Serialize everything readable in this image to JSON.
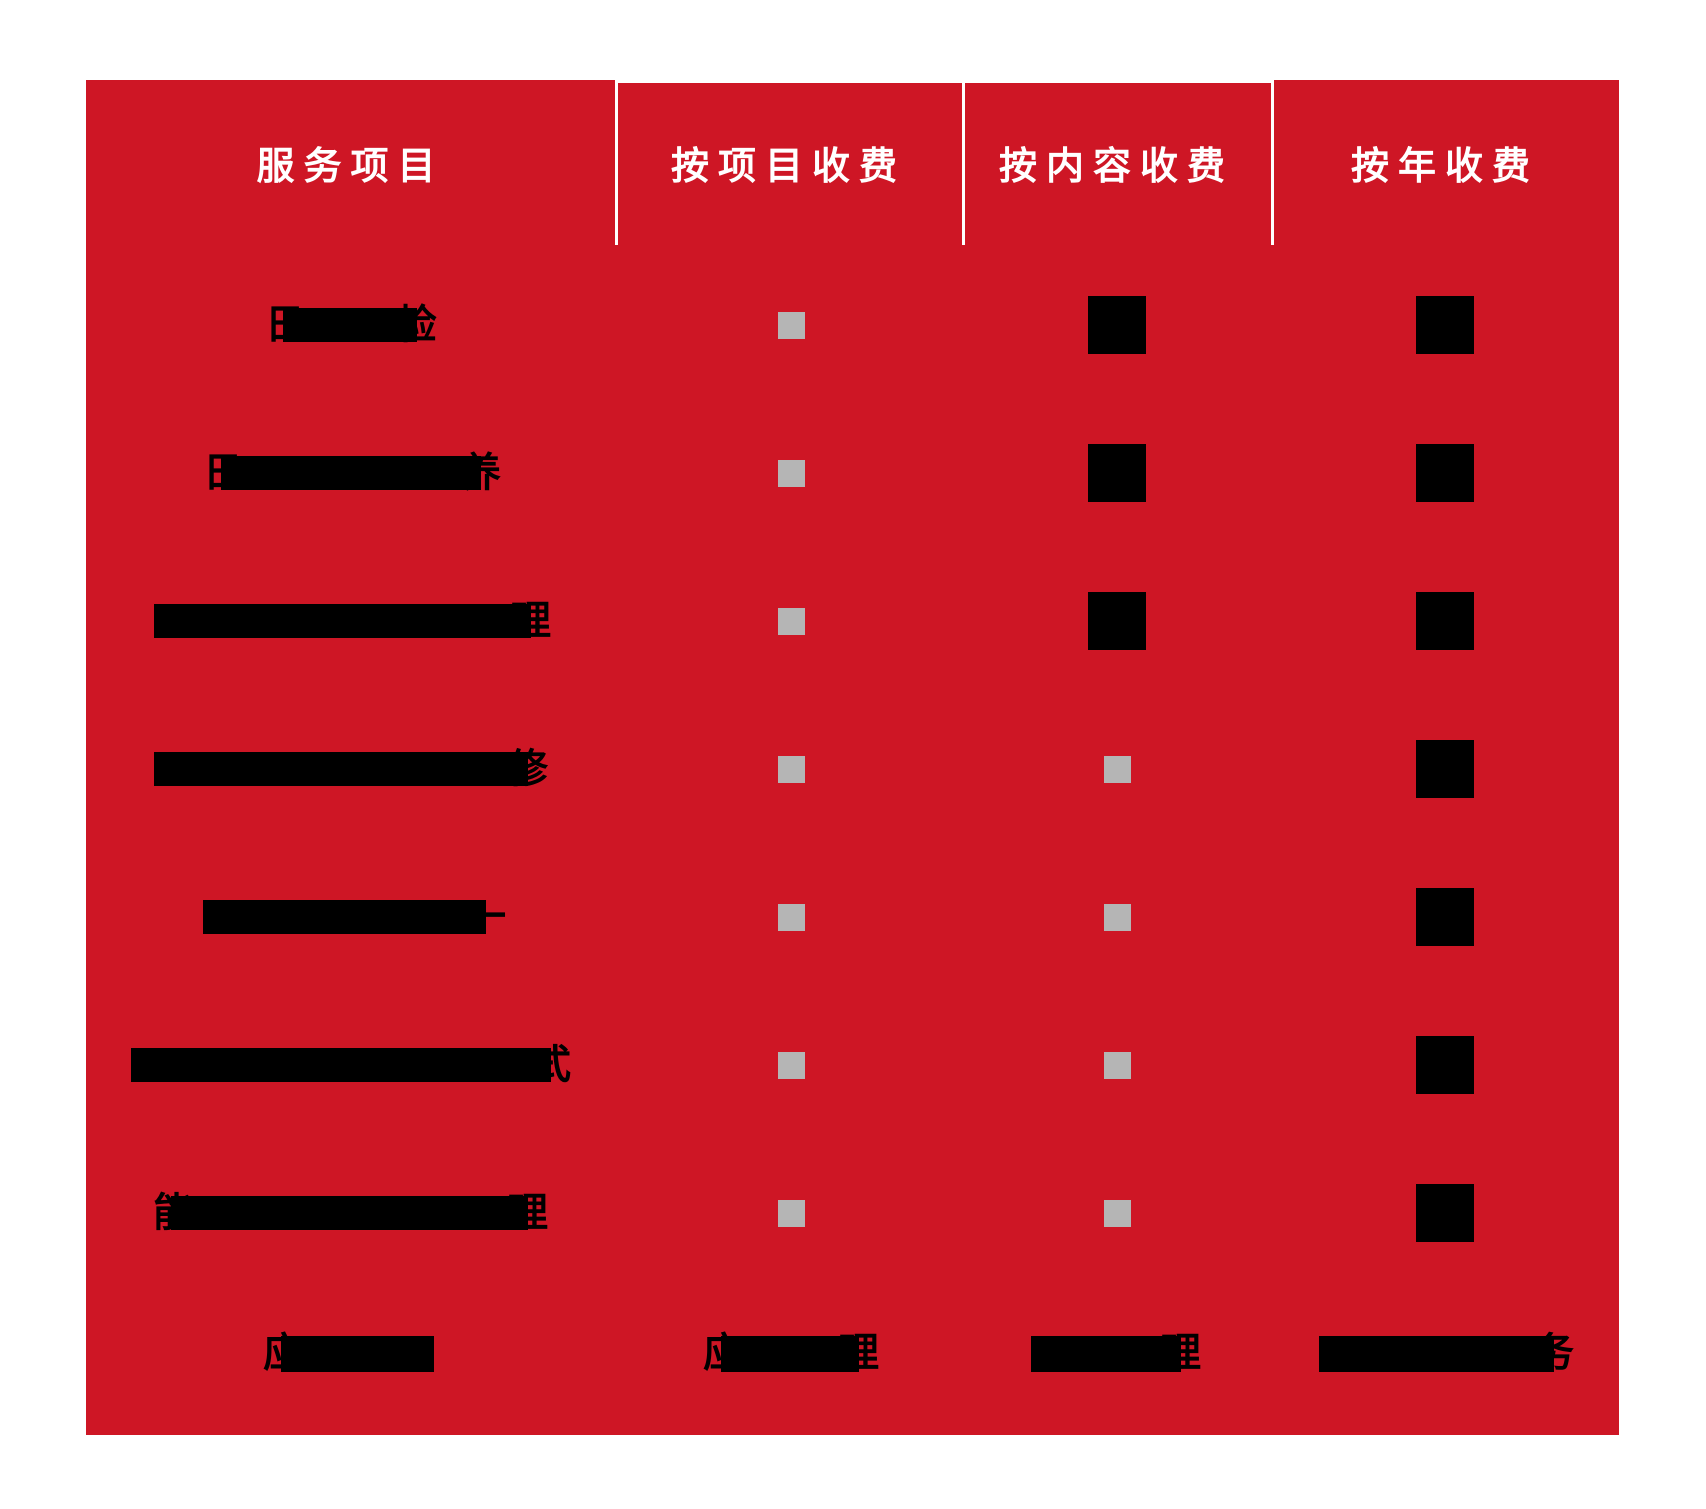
{
  "colors": {
    "panel_red": "#CE1625",
    "marker_gray": "#B5B5B5",
    "marker_black": "#000000",
    "text_white": "#FFFFFF",
    "line_white": "#FFFFFF"
  },
  "chart_data": {
    "type": "table",
    "title": "",
    "columns": [
      "服务项目",
      "按项目收费",
      "按内容收费",
      "按年收费"
    ],
    "marker_legend": {
      "small-gray": "small gray square marker",
      "large-black": "large black square marker"
    },
    "rows": [
      {
        "service_label": {
          "redacted": true,
          "left_fragment": "日",
          "right_fragment": "检"
        },
        "project_fee": "small-gray",
        "content_fee": "large-black",
        "year_fee": "large-black"
      },
      {
        "service_label": {
          "redacted": true,
          "left_fragment": "日",
          "right_fragment": "养"
        },
        "project_fee": "small-gray",
        "content_fee": "large-black",
        "year_fee": "large-black"
      },
      {
        "service_label": {
          "redacted": true,
          "left_fragment": "",
          "right_fragment": "理"
        },
        "project_fee": "small-gray",
        "content_fee": "large-black",
        "year_fee": "large-black"
      },
      {
        "service_label": {
          "redacted": true,
          "left_fragment": "",
          "right_fragment": "修"
        },
        "project_fee": "small-gray",
        "content_fee": "small-gray",
        "year_fee": "large-black"
      },
      {
        "service_label": {
          "redacted": true,
          "left_fragment": "",
          "right_fragment": "一"
        },
        "project_fee": "small-gray",
        "content_fee": "small-gray",
        "year_fee": "large-black"
      },
      {
        "service_label": {
          "redacted": true,
          "left_fragment": "",
          "right_fragment": "式"
        },
        "project_fee": "small-gray",
        "content_fee": "small-gray",
        "year_fee": "large-black"
      },
      {
        "service_label": {
          "redacted": true,
          "left_fragment": "能",
          "right_fragment": "理"
        },
        "project_fee": "small-gray",
        "content_fee": "small-gray",
        "year_fee": "large-black"
      }
    ],
    "footer_row": [
      {
        "redacted": true,
        "left_fragment": "应",
        "right_fragment": ""
      },
      {
        "redacted": true,
        "left_fragment": "应",
        "right_fragment": "理"
      },
      {
        "redacted": true,
        "left_fragment": "",
        "right_fragment": "理"
      },
      {
        "redacted": true,
        "left_fragment": "",
        "right_fragment": "务"
      }
    ]
  }
}
